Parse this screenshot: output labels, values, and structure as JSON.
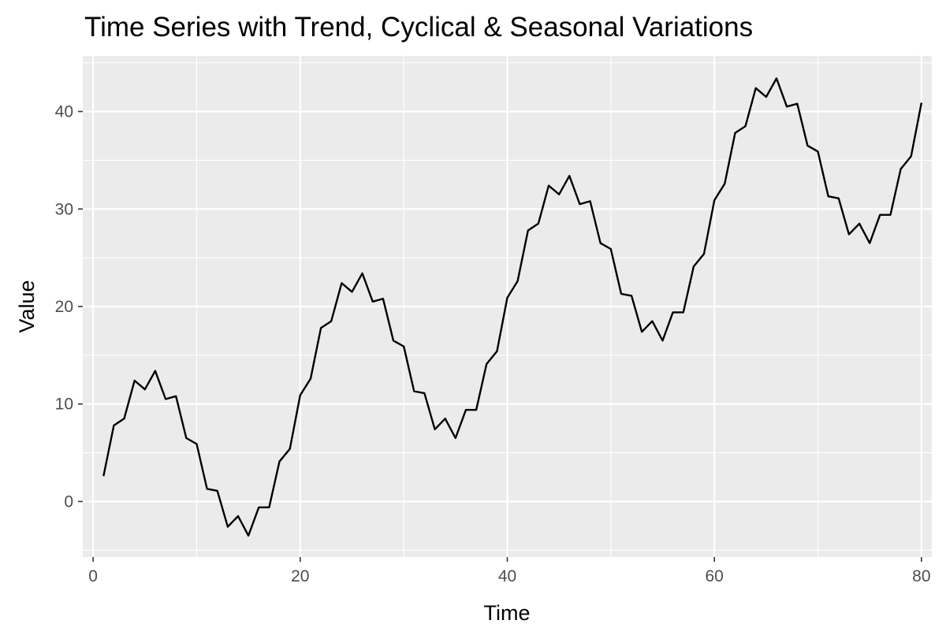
{
  "chart_data": {
    "type": "line",
    "title": "Time Series with Trend, Cyclical & Seasonal Variations",
    "xlabel": "Time",
    "ylabel": "Value",
    "xlim": [
      -1,
      81
    ],
    "ylim": [
      -5.7,
      45.7
    ],
    "x_ticks": [
      0,
      20,
      40,
      60,
      80
    ],
    "y_ticks": [
      0,
      10,
      20,
      30,
      40
    ],
    "grid": true,
    "legend": "none",
    "colors": {
      "panel": "#ebebeb",
      "grid": "#ffffff",
      "line": "#000000",
      "tick_text": "#4d4d4d"
    },
    "series": [
      {
        "x": [
          1,
          2,
          3,
          4,
          5,
          6,
          7,
          8,
          9,
          10,
          11,
          12,
          13,
          14,
          15,
          16,
          17,
          18,
          19,
          20,
          21,
          22,
          23,
          24,
          25,
          26,
          27,
          28,
          29,
          30,
          31,
          32,
          33,
          34,
          35,
          36,
          37,
          38,
          39,
          40,
          41,
          42,
          43,
          44,
          45,
          46,
          47,
          48,
          49,
          50,
          51,
          52,
          53,
          54,
          55,
          56,
          57,
          58,
          59,
          60,
          61,
          62,
          63,
          64,
          65,
          66,
          67,
          68,
          69,
          70,
          71,
          72,
          73,
          74,
          75,
          76,
          77,
          78,
          79,
          80
        ],
        "values": [
          2.6,
          7.8,
          8.5,
          12.4,
          11.5,
          13.4,
          10.5,
          10.8,
          6.5,
          5.9,
          1.3,
          1.1,
          -2.6,
          -1.5,
          -3.5,
          -0.6,
          -0.6,
          4.1,
          5.4,
          10.9,
          12.6,
          17.8,
          18.5,
          22.4,
          21.5,
          23.4,
          20.5,
          20.8,
          16.5,
          15.9,
          11.3,
          11.1,
          7.4,
          8.5,
          6.5,
          9.4,
          9.4,
          14.1,
          15.4,
          20.9,
          22.6,
          27.8,
          28.5,
          32.4,
          31.5,
          33.4,
          30.5,
          30.8,
          26.5,
          25.9,
          21.3,
          21.1,
          17.4,
          18.5,
          16.5,
          19.4,
          19.4,
          24.1,
          25.4,
          30.9,
          32.6,
          37.8,
          38.5,
          42.4,
          41.5,
          43.4,
          40.5,
          40.8,
          36.5,
          35.9,
          31.3,
          31.1,
          27.4,
          28.5,
          26.5,
          29.4,
          29.4,
          34.1,
          35.4,
          40.9
        ]
      }
    ]
  }
}
